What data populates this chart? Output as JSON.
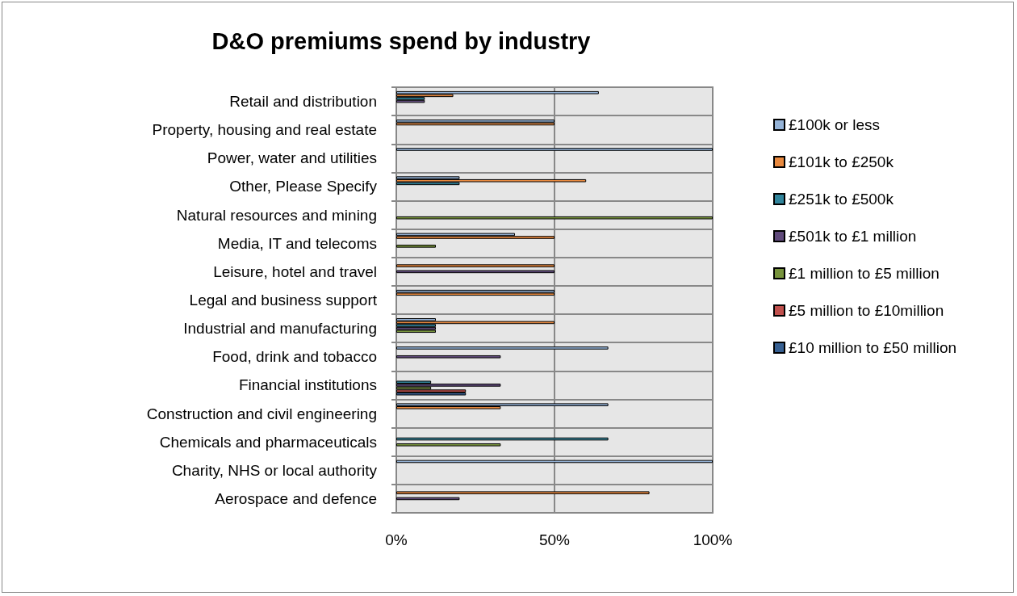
{
  "chart_data": {
    "type": "bar",
    "orientation": "horizontal",
    "title": "D&O premiums spend by industry",
    "categories": [
      "Retail and distribution",
      "Property, housing and real estate",
      "Power, water and utilities",
      "Other, Please Specify",
      "Natural resources and mining",
      "Media, IT and telecoms",
      "Leisure, hotel and travel",
      "Legal and business support",
      "Industrial and manufacturing",
      "Food, drink and tobacco",
      "Financial institutions",
      "Construction and civil engineering",
      "Chemicals and pharmaceuticals",
      "Charity, NHS or local authority",
      "Aerospace and defence"
    ],
    "series": [
      {
        "name": "£100k or less",
        "color": "#95b3d7",
        "values": [
          64,
          50,
          100,
          20,
          null,
          37.5,
          null,
          50,
          12.5,
          67,
          null,
          67,
          null,
          100,
          null
        ]
      },
      {
        "name": "£101k to £250k",
        "color": "#e8893f",
        "values": [
          18,
          50,
          null,
          60,
          null,
          50,
          50,
          50,
          50,
          null,
          null,
          33,
          null,
          null,
          80
        ]
      },
      {
        "name": "£251k to £500k",
        "color": "#31859c",
        "values": [
          9,
          null,
          null,
          20,
          null,
          null,
          null,
          null,
          12.5,
          null,
          11,
          null,
          67,
          null,
          null
        ]
      },
      {
        "name": "£501k to £1 million",
        "color": "#604a7b",
        "values": [
          9,
          null,
          null,
          null,
          null,
          null,
          50,
          null,
          12.5,
          33,
          33,
          null,
          null,
          null,
          20
        ]
      },
      {
        "name": "£1 million to £5 million",
        "color": "#77933c",
        "values": [
          null,
          null,
          null,
          null,
          100,
          12.5,
          null,
          null,
          12.5,
          null,
          11,
          null,
          33,
          null,
          null
        ]
      },
      {
        "name": "£5 million to £10million",
        "color": "#c0504d",
        "values": [
          null,
          null,
          null,
          null,
          null,
          null,
          null,
          null,
          null,
          null,
          22,
          null,
          null,
          null,
          null
        ]
      },
      {
        "name": "£10 million to £50 million",
        "color": "#376092",
        "values": [
          null,
          null,
          null,
          null,
          null,
          null,
          null,
          null,
          null,
          null,
          22,
          null,
          null,
          null,
          null
        ]
      }
    ],
    "xlim": [
      0,
      100
    ],
    "xticks": [
      {
        "value": 0,
        "label": "0%"
      },
      {
        "value": 50,
        "label": "50%"
      },
      {
        "value": 100,
        "label": "100%"
      }
    ],
    "grid": true,
    "legend": "right"
  }
}
